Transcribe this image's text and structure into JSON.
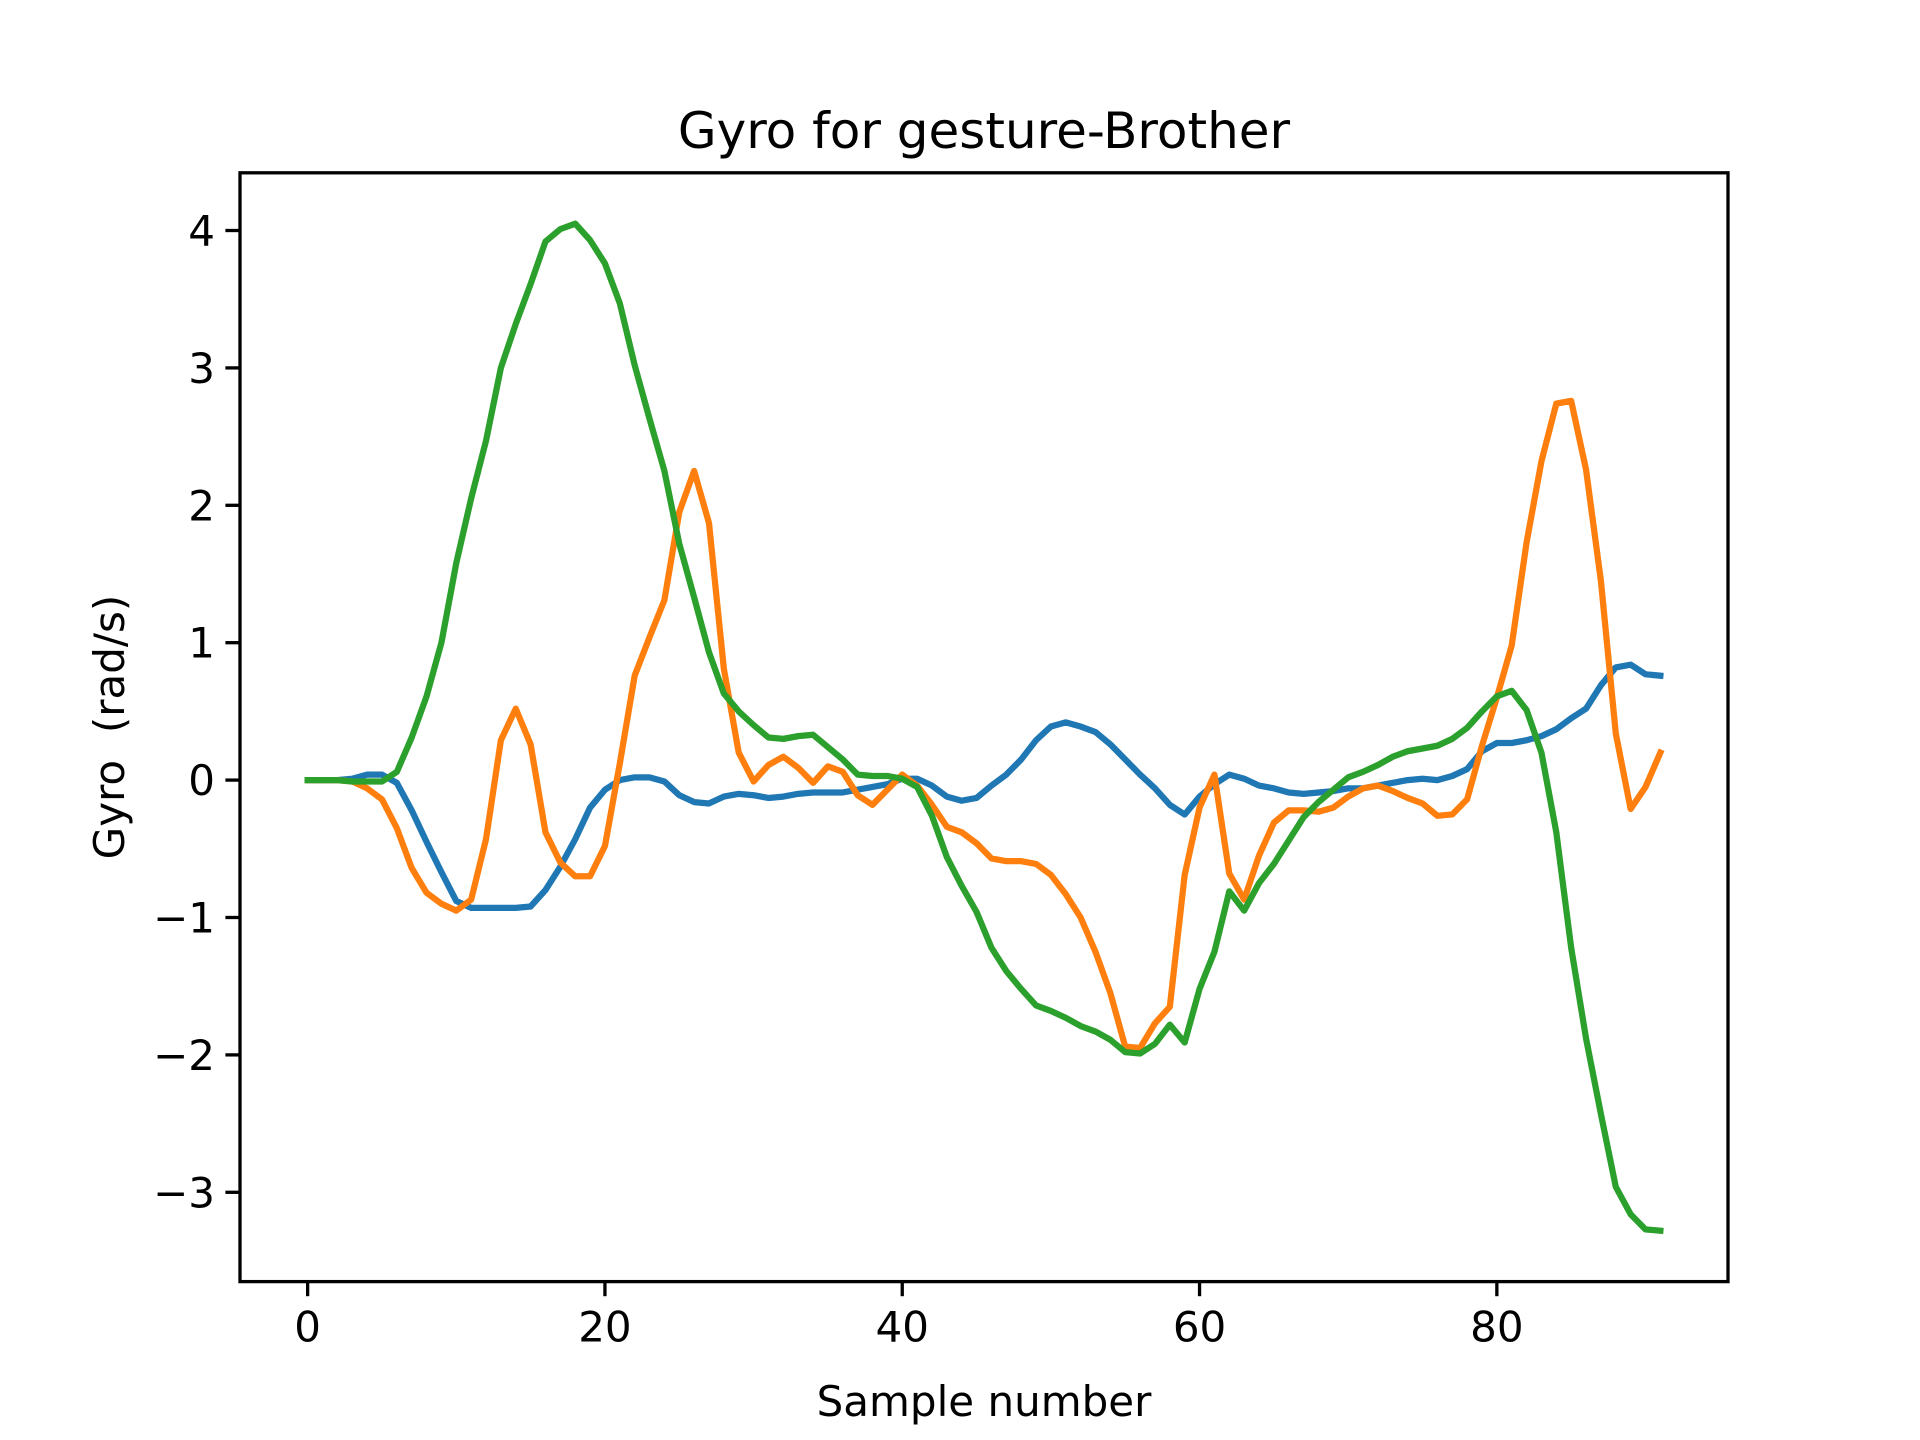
{
  "chart_data": {
    "type": "line",
    "title": "Gyro for gesture-Brother",
    "x_label": "Sample number",
    "y_label": "Gyro  (rad/s)",
    "x": [
      0,
      1,
      2,
      3,
      4,
      5,
      6,
      7,
      8,
      9,
      10,
      11,
      12,
      13,
      14,
      15,
      16,
      17,
      18,
      19,
      20,
      21,
      22,
      23,
      24,
      25,
      26,
      27,
      28,
      29,
      30,
      31,
      32,
      33,
      34,
      35,
      36,
      37,
      38,
      39,
      40,
      41,
      42,
      43,
      44,
      45,
      46,
      47,
      48,
      49,
      50,
      51,
      52,
      53,
      54,
      55,
      56,
      57,
      58,
      59,
      60,
      61,
      62,
      63,
      64,
      65,
      66,
      67,
      68,
      69,
      70,
      71,
      72,
      73,
      74,
      75,
      76,
      77,
      78,
      79,
      80,
      81,
      82,
      83,
      84,
      85,
      86,
      87,
      88,
      89,
      90,
      91
    ],
    "series": [
      {
        "color": "#1f77b4",
        "values": [
          0,
          0,
          0,
          0.01,
          0.04,
          0.04,
          -0.02,
          -0.22,
          -0.45,
          -0.67,
          -0.88,
          -0.93,
          -0.93,
          -0.93,
          -0.93,
          -0.92,
          -0.8,
          -0.63,
          -0.43,
          -0.2,
          -0.07,
          0,
          0.02,
          0.02,
          -0.01,
          -0.11,
          -0.16,
          -0.17,
          -0.12,
          -0.1,
          -0.11,
          -0.13,
          -0.12,
          -0.1,
          -0.09,
          -0.09,
          -0.09,
          -0.07,
          -0.05,
          -0.03,
          0.01,
          0.01,
          -0.04,
          -0.12,
          -0.15,
          -0.13,
          -0.04,
          0.04,
          0.15,
          0.29,
          0.39,
          0.42,
          0.39,
          0.35,
          0.26,
          0.15,
          0.04,
          -0.06,
          -0.18,
          -0.25,
          -0.12,
          -0.03,
          0.04,
          0.01,
          -0.04,
          -0.06,
          -0.09,
          -0.1,
          -0.09,
          -0.08,
          -0.06,
          -0.06,
          -0.04,
          -0.02,
          0,
          0.01,
          0,
          0.03,
          0.08,
          0.21,
          0.27,
          0.27,
          0.29,
          0.32,
          0.37,
          0.45,
          0.52,
          0.69,
          0.82,
          0.84,
          0.77,
          0.76
        ]
      },
      {
        "color": "#ff7f0e",
        "values": [
          0,
          0,
          0,
          -0.01,
          -0.06,
          -0.14,
          -0.35,
          -0.64,
          -0.82,
          -0.9,
          -0.95,
          -0.87,
          -0.43,
          0.29,
          0.52,
          0.26,
          -0.38,
          -0.6,
          -0.7,
          -0.7,
          -0.48,
          0.12,
          0.76,
          1.04,
          1.31,
          1.95,
          2.25,
          1.87,
          0.81,
          0.2,
          -0.01,
          0.11,
          0.17,
          0.09,
          -0.02,
          0.1,
          0.06,
          -0.11,
          -0.18,
          -0.07,
          0.04,
          -0.04,
          -0.18,
          -0.34,
          -0.38,
          -0.46,
          -0.57,
          -0.59,
          -0.59,
          -0.61,
          -0.69,
          -0.83,
          -1.0,
          -1.25,
          -1.55,
          -1.94,
          -1.95,
          -1.77,
          -1.65,
          -0.69,
          -0.2,
          0.04,
          -0.68,
          -0.87,
          -0.55,
          -0.31,
          -0.22,
          -0.22,
          -0.23,
          -0.2,
          -0.12,
          -0.06,
          -0.04,
          -0.08,
          -0.13,
          -0.17,
          -0.26,
          -0.25,
          -0.14,
          0.25,
          0.6,
          0.98,
          1.73,
          2.32,
          2.74,
          2.76,
          2.26,
          1.45,
          0.34,
          -0.21,
          -0.05,
          0.2
        ]
      },
      {
        "color": "#2ca02c",
        "values": [
          0,
          0,
          0,
          -0.01,
          -0.01,
          -0.01,
          0.06,
          0.31,
          0.61,
          1.0,
          1.58,
          2.05,
          2.47,
          3.0,
          3.32,
          3.61,
          3.92,
          4.01,
          4.05,
          3.93,
          3.76,
          3.47,
          3.02,
          2.63,
          2.25,
          1.72,
          1.33,
          0.93,
          0.63,
          0.5,
          0.4,
          0.31,
          0.3,
          0.32,
          0.33,
          0.24,
          0.15,
          0.04,
          0.03,
          0.03,
          0.01,
          -0.05,
          -0.26,
          -0.56,
          -0.77,
          -0.96,
          -1.22,
          -1.39,
          -1.52,
          -1.64,
          -1.68,
          -1.73,
          -1.79,
          -1.83,
          -1.89,
          -1.98,
          -1.99,
          -1.92,
          -1.78,
          -1.91,
          -1.52,
          -1.25,
          -0.81,
          -0.95,
          -0.75,
          -0.61,
          -0.44,
          -0.27,
          -0.16,
          -0.07,
          0.02,
          0.06,
          0.11,
          0.17,
          0.21,
          0.23,
          0.25,
          0.3,
          0.38,
          0.5,
          0.61,
          0.65,
          0.51,
          0.2,
          -0.38,
          -1.22,
          -1.88,
          -2.43,
          -2.96,
          -3.16,
          -3.27,
          -3.28
        ]
      }
    ],
    "xlim": [
      -4.55,
      95.55
    ],
    "xticks": [
      0,
      20,
      40,
      60,
      80
    ],
    "ylim": [
      -3.65,
      4.42
    ],
    "yticks": [
      {
        "value": -3,
        "label": "−3"
      },
      {
        "value": -2,
        "label": "−2"
      },
      {
        "value": -1,
        "label": "−1"
      },
      0,
      1,
      2,
      3,
      4
    ]
  }
}
